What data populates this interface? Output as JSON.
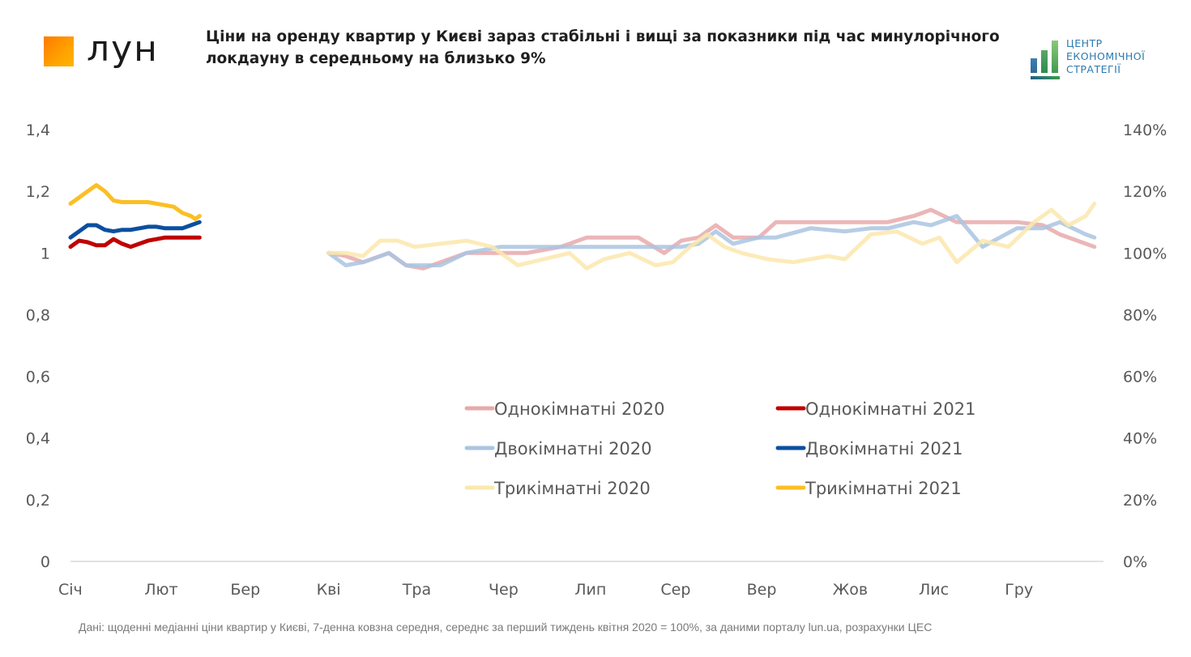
{
  "header": {
    "brand": "лун",
    "title": "Ціни на оренду квартир у Києві зараз стабільні і вищі за показники під час минулорічного локдауну в середньому на близько 9%",
    "partner_logo_lines": [
      "ЦЕНТР",
      "ЕКОНОМІЧНОЇ",
      "СТРАТЕГІЇ"
    ]
  },
  "footnote": "Дані: щоденні медіанні ціни квартир у Києві, 7-денна ковзна середня, середнє за перший тиждень квітня 2020 = 100%, за даними порталу lun.ua, розрахунки ЦЕС",
  "chart_data": {
    "type": "line",
    "title": "Ціни на оренду квартир у Києві зараз стабільні і вищі за показники під час минулорічного локдауну в середньому на близько 9%",
    "xlabel": "",
    "ylabel": "",
    "categories": [
      "Січ",
      "Лют",
      "Бер",
      "Кві",
      "Тра",
      "Чер",
      "Лип",
      "Сер",
      "Вер",
      "Жов",
      "Лис",
      "Гру"
    ],
    "x_unit": "month index (0 = Січ)",
    "ylim": [
      0,
      1.4
    ],
    "yticks": [
      "0",
      "0,2",
      "0,4",
      "0,6",
      "0,8",
      "1",
      "1,2",
      "1,4"
    ],
    "y2lim": [
      0,
      1.4
    ],
    "y2ticks": [
      "0%",
      "20%",
      "40%",
      "60%",
      "80%",
      "100%",
      "120%",
      "140%"
    ],
    "grid": false,
    "legend_position": "center-right",
    "series": [
      {
        "name": "Однокімнатні 2020",
        "color": "#e8a9ab",
        "x": [
          3.0,
          3.2,
          3.4,
          3.7,
          3.9,
          4.1,
          4.3,
          4.6,
          5.0,
          5.3,
          5.7,
          6.0,
          6.3,
          6.6,
          6.9,
          7.1,
          7.3,
          7.5,
          7.7,
          8.0,
          8.2,
          8.6,
          9.0,
          9.3,
          9.5,
          9.8,
          10.0,
          10.3,
          10.6,
          11.0,
          11.3,
          11.5,
          11.8,
          11.9
        ],
        "y": [
          1.0,
          0.99,
          0.97,
          1.0,
          0.96,
          0.95,
          0.97,
          1.0,
          1.0,
          1.0,
          1.02,
          1.05,
          1.05,
          1.05,
          1.0,
          1.04,
          1.05,
          1.09,
          1.05,
          1.05,
          1.1,
          1.1,
          1.1,
          1.1,
          1.1,
          1.12,
          1.14,
          1.1,
          1.1,
          1.1,
          1.09,
          1.06,
          1.03,
          1.02
        ]
      },
      {
        "name": "Однокімнатні 2021",
        "color": "#c00000",
        "x": [
          0.0,
          0.1,
          0.2,
          0.3,
          0.4,
          0.5,
          0.6,
          0.7,
          0.8,
          0.9,
          1.0,
          1.1,
          1.2,
          1.3,
          1.4,
          1.5
        ],
        "y": [
          1.02,
          1.04,
          1.035,
          1.025,
          1.025,
          1.045,
          1.03,
          1.02,
          1.03,
          1.04,
          1.045,
          1.05,
          1.05,
          1.05,
          1.05,
          1.05
        ]
      },
      {
        "name": "Двокімнатні 2020",
        "color": "#aac4e2",
        "x": [
          3.0,
          3.2,
          3.4,
          3.7,
          3.9,
          4.1,
          4.3,
          4.6,
          5.0,
          5.3,
          5.7,
          6.0,
          6.3,
          6.6,
          6.9,
          7.1,
          7.3,
          7.5,
          7.7,
          8.0,
          8.2,
          8.6,
          9.0,
          9.3,
          9.5,
          9.8,
          10.0,
          10.3,
          10.6,
          11.0,
          11.3,
          11.5,
          11.8,
          11.9
        ],
        "y": [
          1.0,
          0.96,
          0.97,
          1.0,
          0.96,
          0.96,
          0.96,
          1.0,
          1.02,
          1.02,
          1.02,
          1.02,
          1.02,
          1.02,
          1.02,
          1.02,
          1.03,
          1.07,
          1.03,
          1.05,
          1.05,
          1.08,
          1.07,
          1.08,
          1.08,
          1.1,
          1.09,
          1.12,
          1.02,
          1.08,
          1.08,
          1.1,
          1.06,
          1.05
        ]
      },
      {
        "name": "Двокімнатні 2021",
        "color": "#0b4fa0",
        "x": [
          0.0,
          0.1,
          0.2,
          0.3,
          0.4,
          0.5,
          0.6,
          0.7,
          0.8,
          0.9,
          1.0,
          1.1,
          1.2,
          1.3,
          1.4,
          1.5
        ],
        "y": [
          1.05,
          1.07,
          1.09,
          1.09,
          1.075,
          1.07,
          1.075,
          1.075,
          1.08,
          1.085,
          1.085,
          1.08,
          1.08,
          1.08,
          1.09,
          1.1
        ]
      },
      {
        "name": "Трикімнатні 2020",
        "color": "#fbe8ad",
        "x": [
          3.0,
          3.2,
          3.4,
          3.6,
          3.8,
          4.0,
          4.3,
          4.6,
          4.9,
          5.2,
          5.5,
          5.8,
          6.0,
          6.2,
          6.5,
          6.8,
          7.0,
          7.2,
          7.4,
          7.6,
          7.8,
          8.1,
          8.4,
          8.8,
          9.0,
          9.3,
          9.6,
          9.9,
          10.1,
          10.3,
          10.6,
          10.9,
          11.2,
          11.4,
          11.6,
          11.8,
          11.9
        ],
        "y": [
          1.0,
          1.0,
          0.99,
          1.04,
          1.04,
          1.02,
          1.03,
          1.04,
          1.02,
          0.96,
          0.98,
          1.0,
          0.95,
          0.98,
          1.0,
          0.96,
          0.97,
          1.02,
          1.06,
          1.02,
          1.0,
          0.98,
          0.97,
          0.99,
          0.98,
          1.06,
          1.07,
          1.03,
          1.05,
          0.97,
          1.04,
          1.02,
          1.1,
          1.14,
          1.09,
          1.12,
          1.16
        ]
      },
      {
        "name": "Трикімнатні 2021",
        "color": "#fbbf24",
        "x": [
          0.0,
          0.1,
          0.2,
          0.3,
          0.35,
          0.4,
          0.5,
          0.6,
          0.7,
          0.8,
          0.9,
          1.0,
          1.1,
          1.2,
          1.3,
          1.4,
          1.45,
          1.5
        ],
        "y": [
          1.16,
          1.18,
          1.2,
          1.22,
          1.21,
          1.2,
          1.17,
          1.165,
          1.165,
          1.165,
          1.165,
          1.16,
          1.155,
          1.15,
          1.13,
          1.12,
          1.11,
          1.12
        ]
      }
    ]
  }
}
